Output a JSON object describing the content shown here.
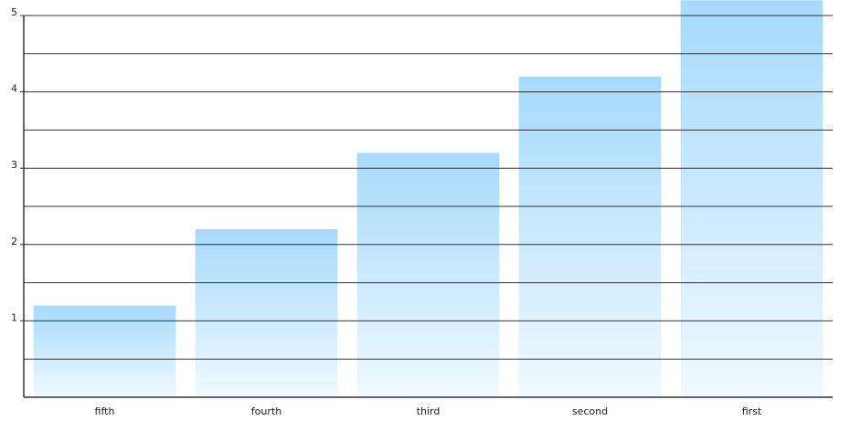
{
  "chart_data": {
    "type": "bar",
    "categories": [
      "fifth",
      "fourth",
      "third",
      "second",
      "first"
    ],
    "values": [
      1.2,
      2.2,
      3.2,
      4.2,
      5.2
    ],
    "color": "#a6dafc",
    "ylim": [
      0,
      5
    ],
    "yticks": [
      1,
      2,
      3,
      4,
      5
    ],
    "minor_yticks": [
      0.5,
      1.5,
      2.5,
      3.5,
      4.5
    ],
    "grid": true
  }
}
